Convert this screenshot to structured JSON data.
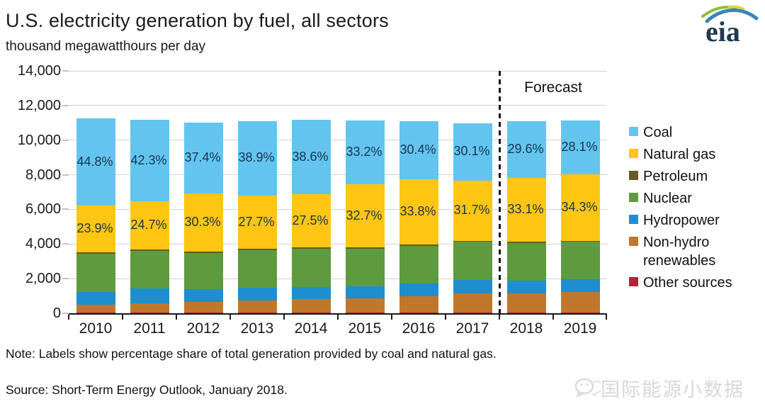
{
  "header": {
    "title": "U.S. electricity generation by fuel, all sectors",
    "subtitle": "thousand megawatthours per day",
    "logo_text": "eia"
  },
  "chart_data": {
    "type": "bar",
    "stacked": true,
    "title": "U.S. electricity generation by fuel, all sectors",
    "ylabel": "thousand megawatthours per day",
    "xlabel": "",
    "ylim": [
      0,
      14000
    ],
    "ytick_step": 2000,
    "ytick_labels": [
      "0",
      "2,000",
      "4,000",
      "6,000",
      "8,000",
      "10,000",
      "12,000",
      "14,000"
    ],
    "grid": true,
    "legend_position": "right",
    "categories": [
      "2010",
      "2011",
      "2012",
      "2013",
      "2014",
      "2015",
      "2016",
      "2017",
      "2018",
      "2019"
    ],
    "forecast_label": "Forecast",
    "forecast_start_index": 8,
    "series": [
      {
        "name": "Other sources",
        "color": "#B22338",
        "values": [
          35,
          35,
          35,
          35,
          35,
          35,
          35,
          35,
          35,
          35
        ]
      },
      {
        "name": "Non-hydro renewables",
        "color": "#C1772B",
        "values": [
          464,
          543,
          611,
          712,
          775,
          815,
          951,
          1094,
          1098,
          1204
        ]
      },
      {
        "name": "Hydropower",
        "color": "#1E8ECE",
        "values": [
          712,
          867,
          750,
          730,
          706,
          687,
          730,
          810,
          750,
          740
        ]
      },
      {
        "name": "Nuclear",
        "color": "#5E9B3F",
        "values": [
          2210,
          2160,
          2100,
          2160,
          2190,
          2185,
          2190,
          2195,
          2190,
          2150
        ]
      },
      {
        "name": "Petroleum",
        "color": "#685A22",
        "values": [
          100,
          85,
          64,
          74,
          83,
          77,
          65,
          60,
          60,
          60
        ]
      },
      {
        "name": "Natural gas",
        "color": "#FFC613",
        "values": [
          2689,
          2761,
          3339,
          3077,
          3075,
          3643,
          3748,
          3481,
          3667,
          3821
        ]
      },
      {
        "name": "Coal",
        "color": "#63C5EF",
        "values": [
          5040,
          4729,
          4121,
          4322,
          4316,
          3698,
          3371,
          3305,
          3280,
          3130
        ]
      }
    ],
    "legend": [
      "Coal",
      "Natural gas",
      "Petroleum",
      "Nuclear",
      "Hydropower",
      "Non-hydro renewables",
      "Other sources"
    ],
    "segment_labels": [
      {
        "series": "Coal",
        "values": [
          "44.8%",
          "42.3%",
          "37.4%",
          "38.9%",
          "38.6%",
          "33.2%",
          "30.4%",
          "30.1%",
          "29.6%",
          "28.1%"
        ]
      },
      {
        "series": "Natural gas",
        "values": [
          "23.9%",
          "24.7%",
          "30.3%",
          "27.7%",
          "27.5%",
          "32.7%",
          "33.8%",
          "31.7%",
          "33.1%",
          "34.3%"
        ]
      }
    ],
    "segment_label_color": "#17344d"
  },
  "footer": {
    "note": "Note: Labels show percentage share of total generation provided by coal and natural gas.",
    "source": "Source: Short-Term Energy Outlook, January 2018.",
    "watermark": "国际能源小数据"
  }
}
